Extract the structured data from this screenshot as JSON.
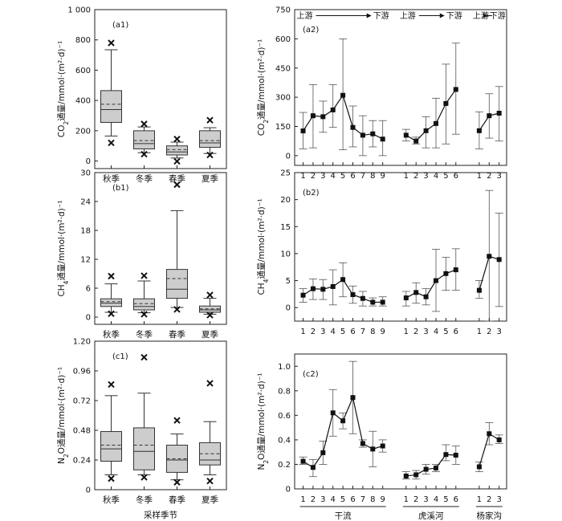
{
  "chart_data": [
    {
      "id": "a1",
      "type": "box",
      "panel_label": "(a1)",
      "ylabel": "CO2通量/mmol·(m²·d)⁻¹",
      "ylim": [
        -50,
        1000
      ],
      "yticks": [
        0,
        200,
        400,
        600,
        800,
        1000
      ],
      "ytick_labels": [
        "0",
        "200",
        "400",
        "600",
        "800",
        "1 000"
      ],
      "categories": [
        "秋季",
        "冬季",
        "春季",
        "夏季"
      ],
      "boxes": [
        {
          "min": 165,
          "q1": 255,
          "median": 340,
          "mean": 375,
          "q3": 465,
          "max": 735,
          "outliers": [
            780,
            120
          ]
        },
        {
          "min": 55,
          "q1": 80,
          "median": 115,
          "mean": 135,
          "q3": 200,
          "max": 225,
          "outliers": [
            245,
            45
          ]
        },
        {
          "min": 20,
          "q1": 40,
          "median": 60,
          "mean": 75,
          "q3": 100,
          "max": 125,
          "outliers": [
            145,
            -2
          ]
        },
        {
          "min": 50,
          "q1": 90,
          "median": 120,
          "mean": 135,
          "q3": 200,
          "max": 220,
          "outliers": [
            270,
            40
          ]
        }
      ]
    },
    {
      "id": "a2",
      "type": "line_errorbar",
      "panel_label": "(a2)",
      "ylabel": "CO2通量/mmol·(m²·d)⁻¹",
      "ylim": [
        -50,
        750
      ],
      "yticks": [
        0,
        150,
        300,
        450,
        600,
        750
      ],
      "groups": [
        {
          "x": [
            "1",
            "2",
            "3",
            "4",
            "5",
            "6",
            "7",
            "8",
            "9"
          ],
          "y": [
            127,
            205,
            200,
            235,
            310,
            145,
            105,
            112,
            85
          ],
          "lower": [
            35,
            40,
            120,
            145,
            30,
            45,
            0,
            45,
            0
          ],
          "upper": [
            222,
            365,
            280,
            365,
            600,
            255,
            205,
            180,
            180
          ]
        },
        {
          "x": [
            "1",
            "2",
            "3",
            "4",
            "5",
            "6"
          ],
          "y": [
            105,
            75,
            128,
            165,
            268,
            340
          ],
          "lower": [
            75,
            60,
            40,
            40,
            60,
            110
          ],
          "upper": [
            135,
            95,
            200,
            295,
            470,
            578
          ]
        },
        {
          "x": [
            "1",
            "2",
            "3"
          ],
          "y": [
            128,
            205,
            218
          ],
          "lower": [
            35,
            90,
            75
          ],
          "upper": [
            225,
            318,
            355
          ]
        }
      ],
      "flow_labels": [
        {
          "from": "上游",
          "to": "下游"
        },
        {
          "from": "上游",
          "to": "下游"
        },
        {
          "from": "上游",
          "to": "下游"
        }
      ]
    },
    {
      "id": "b1",
      "type": "box",
      "panel_label": "(b1)",
      "ylabel": "CH4通量/mmol·(m²·d)⁻¹",
      "ylim": [
        -1.5,
        30
      ],
      "yticks": [
        0,
        6,
        12,
        18,
        24,
        30
      ],
      "ytick_labels": [
        "0",
        "6",
        "12",
        "18",
        "24",
        "30"
      ],
      "categories": [
        "秋季",
        "冬季",
        "春季",
        "夏季"
      ],
      "boxes": [
        {
          "min": 1.0,
          "q1": 2.2,
          "median": 2.9,
          "mean": 3.2,
          "q3": 3.8,
          "max": 6.9,
          "outliers": [
            8.5,
            0.7
          ]
        },
        {
          "min": 0.9,
          "q1": 1.5,
          "median": 2.2,
          "mean": 2.8,
          "q3": 3.8,
          "max": 7.5,
          "outliers": [
            8.6,
            0.6
          ]
        },
        {
          "min": 2.0,
          "q1": 3.9,
          "median": 5.8,
          "mean": 8.0,
          "q3": 9.9,
          "max": 22.1,
          "outliers": [
            27.5,
            1.6
          ]
        },
        {
          "min": 0.6,
          "q1": 1.0,
          "median": 1.5,
          "mean": 1.7,
          "q3": 2.3,
          "max": 3.9,
          "outliers": [
            4.6,
            0.4
          ]
        }
      ]
    },
    {
      "id": "b2",
      "type": "line_errorbar",
      "panel_label": "(b2)",
      "ylabel": "CH4通量/mmol·(m²·d)⁻¹",
      "ylim": [
        -2.5,
        25
      ],
      "yticks": [
        0,
        5,
        10,
        15,
        20,
        25
      ],
      "groups": [
        {
          "x": [
            "1",
            "2",
            "3",
            "4",
            "5",
            "6",
            "7",
            "8",
            "9"
          ],
          "y": [
            2.3,
            3.5,
            3.4,
            3.9,
            5.2,
            2.4,
            1.7,
            1.0,
            1.0
          ],
          "lower": [
            1.0,
            1.5,
            1.5,
            0.5,
            2.0,
            0.8,
            0.3,
            0.3,
            0.3
          ],
          "upper": [
            3.5,
            5.3,
            5.2,
            7.0,
            8.3,
            4.0,
            3.0,
            1.8,
            2.0
          ]
        },
        {
          "x": [
            "1",
            "2",
            "3",
            "4",
            "5",
            "6"
          ],
          "y": [
            1.8,
            2.8,
            2.0,
            5.0,
            6.3,
            7.0
          ],
          "lower": [
            0.3,
            0.8,
            0.5,
            -0.7,
            3.2,
            3.2
          ],
          "upper": [
            3.0,
            4.6,
            3.5,
            10.8,
            9.3,
            10.9
          ]
        },
        {
          "x": [
            "1",
            "2",
            "3"
          ],
          "y": [
            3.2,
            9.5,
            8.9
          ],
          "lower": [
            1.7,
            -2.5,
            0.2
          ],
          "upper": [
            5.0,
            21.7,
            17.5
          ]
        }
      ]
    },
    {
      "id": "c1",
      "type": "box",
      "panel_label": "(c1)",
      "ylabel": "N2O通量/mmol·(m²·d)⁻¹",
      "ylim": [
        0,
        1.2
      ],
      "yticks": [
        0,
        0.24,
        0.48,
        0.72,
        0.96,
        1.2
      ],
      "ytick_labels": [
        "0",
        "0.24",
        "0.48",
        "0.72",
        "0.96",
        "1.20"
      ],
      "categories": [
        "秋季",
        "冬季",
        "春季",
        "夏季"
      ],
      "xlabel": "采样季节",
      "boxes": [
        {
          "min": 0.12,
          "q1": 0.23,
          "median": 0.33,
          "mean": 0.36,
          "q3": 0.47,
          "max": 0.76,
          "outliers": [
            0.85,
            0.09
          ]
        },
        {
          "min": 0.12,
          "q1": 0.16,
          "median": 0.31,
          "mean": 0.36,
          "q3": 0.5,
          "max": 0.78,
          "outliers": [
            1.07,
            0.1
          ]
        },
        {
          "min": 0.08,
          "q1": 0.14,
          "median": 0.24,
          "mean": 0.25,
          "q3": 0.36,
          "max": 0.45,
          "outliers": [
            0.56,
            0.06
          ]
        },
        {
          "min": 0.12,
          "q1": 0.2,
          "median": 0.24,
          "mean": 0.29,
          "q3": 0.38,
          "max": 0.55,
          "outliers": [
            0.86,
            0.07
          ]
        }
      ]
    },
    {
      "id": "c2",
      "type": "line_errorbar",
      "panel_label": "(c2)",
      "ylabel": "N2O通量/mmol·(m²·d)⁻¹",
      "ylim": [
        0,
        1.1
      ],
      "yticks": [
        0,
        0.2,
        0.4,
        0.6,
        0.8,
        1.0
      ],
      "ytick_labels": [
        "0",
        "0.2",
        "0.4",
        "0.6",
        "0.8",
        "1.0"
      ],
      "groups": [
        {
          "x": [
            "1",
            "2",
            "3",
            "4",
            "5",
            "6",
            "7",
            "8",
            "9"
          ],
          "y": [
            0.225,
            0.175,
            0.295,
            0.62,
            0.555,
            0.745,
            0.37,
            0.325,
            0.35
          ],
          "lower": [
            0.2,
            0.1,
            0.2,
            0.43,
            0.49,
            0.45,
            0.34,
            0.18,
            0.3
          ],
          "upper": [
            0.26,
            0.24,
            0.39,
            0.81,
            0.62,
            1.04,
            0.4,
            0.47,
            0.4
          ]
        },
        {
          "x": [
            "1",
            "2",
            "3",
            "4",
            "5",
            "6"
          ],
          "y": [
            0.105,
            0.115,
            0.16,
            0.17,
            0.28,
            0.275
          ],
          "lower": [
            0.08,
            0.08,
            0.12,
            0.14,
            0.23,
            0.2
          ],
          "upper": [
            0.14,
            0.15,
            0.2,
            0.2,
            0.36,
            0.35
          ]
        },
        {
          "x": [
            "1",
            "2",
            "3"
          ],
          "y": [
            0.18,
            0.45,
            0.4
          ],
          "lower": [
            0.14,
            0.36,
            0.37
          ],
          "upper": [
            0.22,
            0.54,
            0.44
          ]
        }
      ],
      "group_labels": [
        "干流",
        "虎溪河",
        "杨家沟"
      ]
    }
  ]
}
